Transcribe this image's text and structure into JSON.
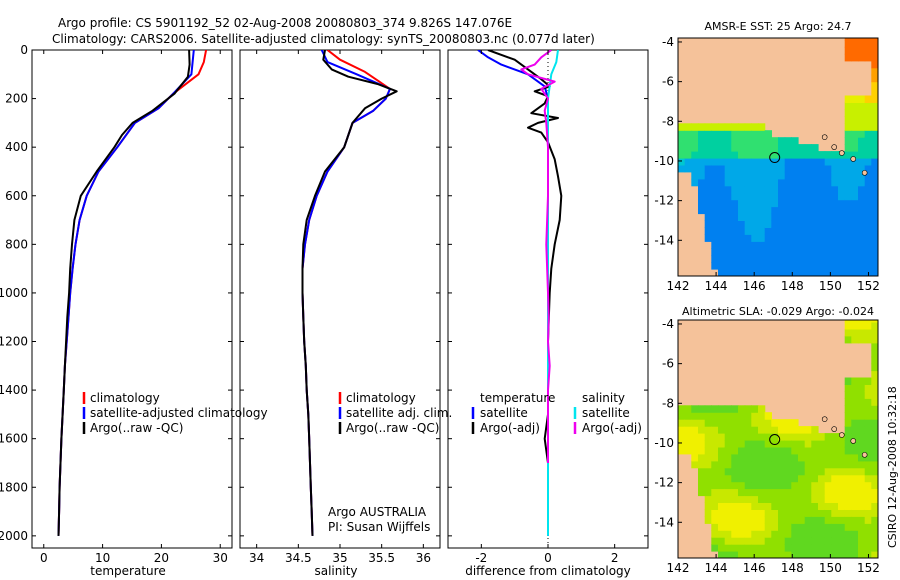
{
  "figure": {
    "title_line1": "Argo profile: CS 5901192_52 02-Aug-2008 20080803_374 9.826S 147.076E",
    "title_line2": "Climatology: CARS2006. Satellite-adjusted climatology: synTS_20080803.nc (0.077d later)",
    "side_stamp": "CSIRO 12-Aug-2008 10:32:18",
    "owner_line1": "Argo AUSTRALIA",
    "owner_line2": "PI: Susan Wijffels"
  },
  "colors": {
    "climatology": "#ff0000",
    "satellite": "#0000ff",
    "argo": "#000000",
    "sat_salinity": "#00e5ee",
    "argo_salinity": "#ee00ee",
    "land": "#f5c29a"
  },
  "chart_data": [
    {
      "type": "line",
      "panel": "temperature",
      "xlabel": "temperature",
      "ylabel": "",
      "xlim": [
        -2,
        32
      ],
      "ylim": [
        0,
        2050
      ],
      "y_reversed": true,
      "xticks": [
        0,
        10,
        20,
        30
      ],
      "yticks": [
        0,
        200,
        400,
        600,
        800,
        1000,
        1200,
        1400,
        1600,
        1800,
        2000
      ],
      "legend": [
        "climatology",
        "satellite-adjusted climatology",
        "Argo(..raw -QC)"
      ],
      "series": [
        {
          "name": "climatology",
          "color": "#ff0000",
          "points": [
            [
              27.6,
              0
            ],
            [
              27.2,
              50
            ],
            [
              26.3,
              100
            ],
            [
              22,
              180
            ],
            [
              19.5,
              240
            ],
            [
              15.5,
              300
            ],
            [
              12.5,
              400
            ],
            [
              9.3,
              500
            ],
            [
              7.3,
              600
            ],
            [
              6.1,
              700
            ],
            [
              5.4,
              800
            ],
            [
              4.9,
              900
            ],
            [
              4.5,
              1000
            ],
            [
              4.2,
              1100
            ],
            [
              3.9,
              1200
            ],
            [
              3.6,
              1300
            ],
            [
              3.4,
              1400
            ],
            [
              3.2,
              1500
            ],
            [
              3.0,
              1600
            ],
            [
              2.85,
              1700
            ],
            [
              2.7,
              1800
            ],
            [
              2.6,
              1900
            ],
            [
              2.5,
              2000
            ]
          ]
        },
        {
          "name": "satellite-adjusted climatology",
          "color": "#0000ff",
          "points": [
            [
              25.5,
              0
            ],
            [
              25.3,
              50
            ],
            [
              25.1,
              100
            ],
            [
              22,
              180
            ],
            [
              19.5,
              240
            ],
            [
              15.5,
              300
            ],
            [
              12.5,
              400
            ],
            [
              9.3,
              500
            ],
            [
              7.3,
              600
            ],
            [
              6.1,
              700
            ],
            [
              5.4,
              800
            ],
            [
              4.9,
              900
            ],
            [
              4.5,
              1000
            ],
            [
              4.2,
              1100
            ],
            [
              3.9,
              1200
            ],
            [
              3.6,
              1300
            ],
            [
              3.4,
              1400
            ],
            [
              3.2,
              1500
            ],
            [
              3.0,
              1600
            ],
            [
              2.85,
              1700
            ],
            [
              2.7,
              1800
            ],
            [
              2.6,
              1900
            ],
            [
              2.5,
              2000
            ]
          ]
        },
        {
          "name": "Argo(..raw -QC)",
          "color": "#000000",
          "points": [
            [
              24.7,
              0
            ],
            [
              24.8,
              60
            ],
            [
              24.5,
              110
            ],
            [
              22.2,
              180
            ],
            [
              18.5,
              250
            ],
            [
              15.1,
              300
            ],
            [
              13.3,
              350
            ],
            [
              12.0,
              400
            ],
            [
              9.0,
              500
            ],
            [
              6.3,
              600
            ],
            [
              5.2,
              700
            ],
            [
              4.8,
              800
            ],
            [
              4.5,
              900
            ],
            [
              4.3,
              1000
            ],
            [
              4.0,
              1100
            ],
            [
              3.8,
              1200
            ],
            [
              3.6,
              1300
            ],
            [
              3.4,
              1400
            ],
            [
              3.2,
              1500
            ],
            [
              3.0,
              1600
            ],
            [
              2.85,
              1700
            ],
            [
              2.7,
              1800
            ],
            [
              2.6,
              1900
            ],
            [
              2.5,
              2000
            ]
          ]
        }
      ]
    },
    {
      "type": "line",
      "panel": "salinity",
      "xlabel": "salinity",
      "ylabel": "",
      "xlim": [
        33.8,
        36.2
      ],
      "ylim": [
        0,
        2050
      ],
      "y_reversed": true,
      "xticks": [
        34,
        34.5,
        35,
        35.5,
        36
      ],
      "legend": [
        "climatology",
        "satellite adj. clim.",
        "Argo(..raw -QC)"
      ],
      "series": [
        {
          "name": "climatology",
          "color": "#ff0000",
          "points": [
            [
              34.85,
              0
            ],
            [
              35.0,
              40
            ],
            [
              35.3,
              90
            ],
            [
              35.6,
              160
            ],
            [
              35.55,
              200
            ],
            [
              35.4,
              250
            ],
            [
              35.15,
              300
            ],
            [
              35.05,
              400
            ],
            [
              34.85,
              500
            ],
            [
              34.72,
              600
            ],
            [
              34.63,
              700
            ],
            [
              34.58,
              800
            ],
            [
              34.55,
              900
            ],
            [
              34.55,
              1000
            ],
            [
              34.56,
              1100
            ],
            [
              34.57,
              1200
            ],
            [
              34.59,
              1300
            ],
            [
              34.6,
              1400
            ],
            [
              34.62,
              1500
            ],
            [
              34.63,
              1600
            ],
            [
              34.64,
              1700
            ],
            [
              34.65,
              1800
            ],
            [
              34.66,
              1900
            ],
            [
              34.67,
              2000
            ]
          ]
        },
        {
          "name": "satellite adj. clim.",
          "color": "#0000ff",
          "points": [
            [
              34.78,
              0
            ],
            [
              34.85,
              50
            ],
            [
              35.2,
              100
            ],
            [
              35.6,
              160
            ],
            [
              35.55,
              200
            ],
            [
              35.4,
              250
            ],
            [
              35.15,
              300
            ],
            [
              35.05,
              400
            ],
            [
              34.85,
              500
            ],
            [
              34.72,
              600
            ],
            [
              34.63,
              700
            ],
            [
              34.58,
              800
            ],
            [
              34.55,
              900
            ],
            [
              34.55,
              1000
            ],
            [
              34.56,
              1100
            ],
            [
              34.57,
              1200
            ],
            [
              34.59,
              1300
            ],
            [
              34.6,
              1400
            ],
            [
              34.62,
              1500
            ],
            [
              34.63,
              1600
            ],
            [
              34.64,
              1700
            ],
            [
              34.65,
              1800
            ],
            [
              34.66,
              1900
            ],
            [
              34.67,
              2000
            ]
          ]
        },
        {
          "name": "Argo(..raw -QC)",
          "color": "#000000",
          "points": [
            [
              34.82,
              0
            ],
            [
              34.8,
              40
            ],
            [
              34.9,
              80
            ],
            [
              35.1,
              110
            ],
            [
              35.45,
              140
            ],
            [
              35.68,
              170
            ],
            [
              35.5,
              200
            ],
            [
              35.3,
              240
            ],
            [
              35.15,
              300
            ],
            [
              35.05,
              400
            ],
            [
              34.82,
              500
            ],
            [
              34.7,
              600
            ],
            [
              34.6,
              700
            ],
            [
              34.56,
              800
            ],
            [
              34.55,
              900
            ],
            [
              34.55,
              1000
            ],
            [
              34.56,
              1100
            ],
            [
              34.57,
              1200
            ],
            [
              34.59,
              1300
            ],
            [
              34.6,
              1400
            ],
            [
              34.62,
              1500
            ],
            [
              34.63,
              1600
            ],
            [
              34.64,
              1700
            ],
            [
              34.65,
              1800
            ],
            [
              34.66,
              1900
            ],
            [
              34.67,
              2000
            ]
          ]
        }
      ]
    },
    {
      "type": "line",
      "panel": "difference",
      "xlabel": "difference from climatology",
      "ylabel": "",
      "xlim": [
        -3,
        3
      ],
      "ylim": [
        0,
        2050
      ],
      "y_reversed": true,
      "xticks": [
        -2,
        0,
        2
      ],
      "legend_columns": [
        {
          "heading": "temperature",
          "items": [
            "satellite",
            "Argo(-adj)"
          ]
        },
        {
          "heading": "salinity",
          "items": [
            "satellite",
            "Argo(-adj)"
          ]
        }
      ],
      "series": [
        {
          "name": "satellite",
          "group": "temperature",
          "color": "#0000ff",
          "points": [
            [
              -2.1,
              0
            ],
            [
              -1.8,
              30
            ],
            [
              -1.4,
              60
            ],
            [
              -0.6,
              100
            ],
            [
              -0.1,
              150
            ],
            [
              0,
              200
            ],
            [
              0,
              400
            ],
            [
              0,
              600
            ],
            [
              0,
              800
            ],
            [
              0,
              1000
            ],
            [
              0,
              1200
            ],
            [
              0,
              1400
            ],
            [
              0,
              1600
            ],
            [
              0,
              1800
            ],
            [
              0,
              2000
            ]
          ]
        },
        {
          "name": "Argo(-adj)",
          "group": "temperature",
          "color": "#000000",
          "points": [
            [
              -1.8,
              0
            ],
            [
              -1.0,
              40
            ],
            [
              -0.6,
              80
            ],
            [
              -0.2,
              120
            ],
            [
              0.05,
              150
            ],
            [
              -0.4,
              170
            ],
            [
              0,
              190
            ],
            [
              -0.1,
              220
            ],
            [
              -0.5,
              260
            ],
            [
              0.3,
              280
            ],
            [
              -0.3,
              300
            ],
            [
              -0.6,
              320
            ],
            [
              -0.2,
              340
            ],
            [
              0,
              380
            ],
            [
              0.2,
              450
            ],
            [
              0.3,
              520
            ],
            [
              0.4,
              600
            ],
            [
              0.35,
              700
            ],
            [
              0.2,
              800
            ],
            [
              0.1,
              900
            ],
            [
              0.05,
              1000
            ],
            [
              0,
              1200
            ],
            [
              0,
              1400
            ],
            [
              0,
              1500
            ],
            [
              -0.1,
              1600
            ],
            [
              0,
              1700
            ]
          ]
        },
        {
          "name": "satellite",
          "group": "salinity",
          "color": "#00e5ee",
          "points": [
            [
              0.3,
              0
            ],
            [
              0.25,
              50
            ],
            [
              0.1,
              100
            ],
            [
              0,
              200
            ],
            [
              0,
              400
            ],
            [
              0,
              600
            ],
            [
              0,
              800
            ],
            [
              0,
              1000
            ],
            [
              0,
              1200
            ],
            [
              0,
              1400
            ],
            [
              0,
              1600
            ],
            [
              0,
              1800
            ],
            [
              0,
              2000
            ]
          ]
        },
        {
          "name": "Argo(-adj)",
          "group": "salinity",
          "color": "#ee00ee",
          "points": [
            [
              0.1,
              0
            ],
            [
              -0.2,
              30
            ],
            [
              -0.4,
              60
            ],
            [
              -0.8,
              80
            ],
            [
              -0.6,
              100
            ],
            [
              0.2,
              130
            ],
            [
              -0.2,
              160
            ],
            [
              0,
              200
            ],
            [
              -0.1,
              250
            ],
            [
              -0.05,
              300
            ],
            [
              0,
              400
            ],
            [
              0,
              600
            ],
            [
              -0.05,
              800
            ],
            [
              0,
              1000
            ],
            [
              0.02,
              1100
            ],
            [
              0,
              1200
            ],
            [
              0.05,
              1300
            ],
            [
              0,
              1400
            ],
            [
              0,
              1600
            ],
            [
              0,
              1700
            ]
          ]
        }
      ]
    },
    {
      "type": "heatmap",
      "panel": "sst_map",
      "title": "AMSR-E SST: 25 Argo: 24.7",
      "xlim": [
        142,
        152.5
      ],
      "ylim": [
        -15.8,
        -3.8
      ],
      "xticks": [
        142,
        144,
        146,
        148,
        150,
        152
      ],
      "yticks": [
        -4,
        -6,
        -8,
        -10,
        -12,
        -14
      ],
      "float_position": [
        147.076,
        -9.826
      ]
    },
    {
      "type": "heatmap",
      "panel": "sla_map",
      "title": "Altimetric SLA: -0.029 Argo: -0.024",
      "xlim": [
        142,
        152.5
      ],
      "ylim": [
        -15.8,
        -3.8
      ],
      "xticks": [
        142,
        144,
        146,
        148,
        150,
        152
      ],
      "yticks": [
        -4,
        -6,
        -8,
        -10,
        -12,
        -14
      ],
      "float_position": [
        147.076,
        -9.826
      ]
    }
  ]
}
